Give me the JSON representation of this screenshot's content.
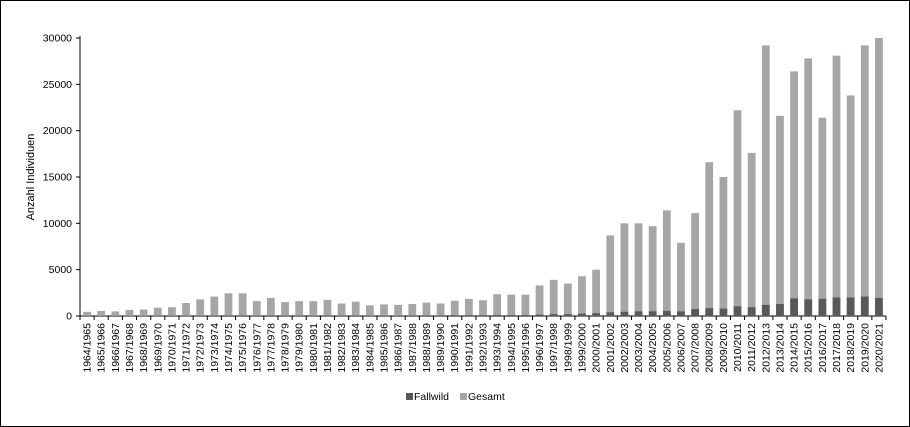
{
  "chart_data": {
    "type": "bar",
    "stacked": false,
    "overlap": true,
    "ylabel": "Anzahl Individuen",
    "xlabel": "",
    "title": "",
    "ylim": [
      0,
      30000
    ],
    "yticks": [
      0,
      5000,
      10000,
      15000,
      20000,
      25000,
      30000
    ],
    "grid": false,
    "legend_position": "bottom",
    "categories": [
      "1964/1965",
      "1965/1966",
      "1966/1967",
      "1967/1968",
      "1968/1969",
      "1969/1970",
      "1970/1971",
      "1971/1972",
      "1972/1973",
      "1973/1974",
      "1974/1975",
      "1975/1976",
      "1976/1977",
      "1977/1978",
      "1978/1979",
      "1979/1980",
      "1980/1981",
      "1981/1982",
      "1982/1983",
      "1983/1984",
      "1984/1985",
      "1985/1986",
      "1986/1987",
      "1987/1988",
      "1988/1989",
      "1989/1990",
      "1990/1991",
      "1991/1992",
      "1992/1993",
      "1993/1994",
      "1994/1995",
      "1995/1996",
      "1996/1997",
      "1997/1998",
      "1998/1999",
      "1999/2000",
      "2000/2001",
      "2001/2002",
      "2002/2003",
      "2003/2004",
      "2004/2005",
      "2005/2006",
      "2006/2007",
      "2007/2008",
      "2008/2009",
      "2009/2010",
      "2010/2011",
      "2011/2012",
      "2012/2013",
      "2013/2014",
      "2014/2015",
      "2015/2016",
      "2016/2017",
      "2017/2018",
      "2018/2019",
      "2019/2020",
      "2020/2021"
    ],
    "series": [
      {
        "name": "Gesamt",
        "color": "#a6a6a6",
        "values": [
          450,
          550,
          500,
          650,
          700,
          900,
          950,
          1400,
          1800,
          2100,
          2450,
          2450,
          1600,
          1950,
          1500,
          1600,
          1600,
          1750,
          1350,
          1550,
          1150,
          1250,
          1200,
          1300,
          1450,
          1350,
          1650,
          1850,
          1700,
          2350,
          2300,
          2300,
          3300,
          3900,
          3500,
          4300,
          5000,
          8700,
          10000,
          10000,
          9700,
          11400,
          7900,
          11100,
          16600,
          15000,
          22200,
          17600,
          29200,
          21600,
          26400,
          27800,
          21400,
          28100,
          23800,
          29200,
          30000
        ]
      },
      {
        "name": "Fallwild",
        "color": "#595959",
        "values": [
          20,
          20,
          20,
          20,
          20,
          30,
          30,
          30,
          40,
          40,
          50,
          50,
          40,
          50,
          40,
          40,
          40,
          50,
          40,
          50,
          40,
          40,
          40,
          50,
          60,
          60,
          70,
          80,
          80,
          100,
          100,
          100,
          150,
          200,
          200,
          250,
          300,
          400,
          450,
          500,
          500,
          550,
          500,
          750,
          850,
          800,
          1050,
          950,
          1200,
          1300,
          1900,
          1800,
          1850,
          2000,
          2000,
          2100,
          1950
        ]
      }
    ]
  },
  "legend": {
    "items": [
      {
        "label": "Fallwild",
        "color": "#595959"
      },
      {
        "label": "Gesamt",
        "color": "#a6a6a6"
      }
    ]
  }
}
